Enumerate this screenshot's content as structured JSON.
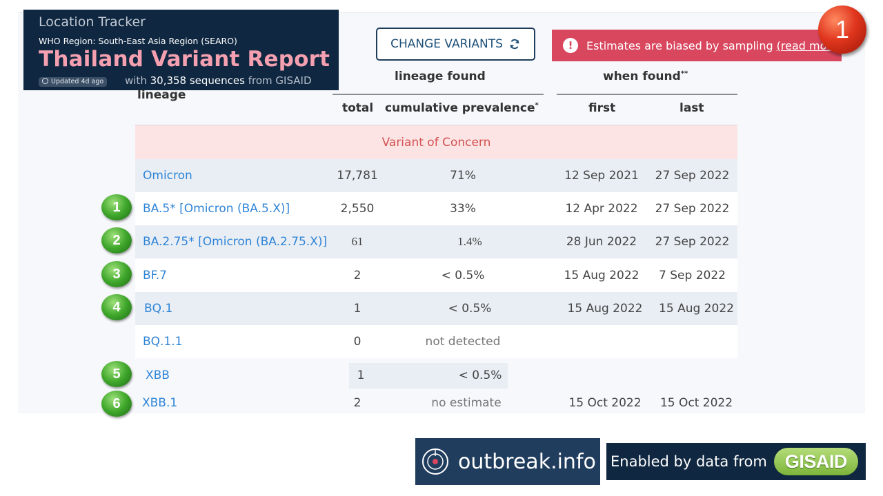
{
  "header": {
    "tracker": "Location Tracker",
    "region": "WHO Region: South-East Asia Region (SEARO)",
    "title": "Thailand Variant Report",
    "updated": "Updated 4d ago",
    "seq_prefix": "with",
    "seq_count": "30,358 sequences",
    "seq_suffix": "from GISAID"
  },
  "change_button": {
    "label": "CHANGE VARIANTS",
    "icon": "refresh-icon"
  },
  "alert": {
    "text": "Estimates are biased by sampling",
    "link": "(read more",
    "icon": "exclamation-icon",
    "color": "#d9475f"
  },
  "slide_badge": "1",
  "table": {
    "group_lineage_found": "lineage found",
    "group_when_found": "when found",
    "group_when_found_mark": "**",
    "col_lineage": "lineage",
    "col_total": "total",
    "col_prevalence": "cumulative prevalence",
    "col_prevalence_mark": "*",
    "col_first": "first",
    "col_last": "last",
    "section_label": "Variant of Concern",
    "rows": [
      {
        "badge": "",
        "lineage": "Omicron",
        "total": "17,781",
        "prevalence": "71%",
        "first": "12 Sep 2021",
        "last": "27 Sep 2022"
      },
      {
        "badge": "1",
        "lineage": "BA.5* [Omicron (BA.5.X)]",
        "total": "2,550",
        "prevalence": "33%",
        "first": "12 Apr 2022",
        "last": "27 Sep 2022"
      },
      {
        "badge": "2",
        "lineage": "BA.2.75* [Omicron (BA.2.75.X)]",
        "total": "61",
        "prevalence": "1.4%",
        "first": "28 Jun 2022",
        "last": "27 Sep 2022"
      },
      {
        "badge": "3",
        "lineage": "BF.7",
        "total": "2",
        "prevalence": "< 0.5%",
        "first": "15 Aug 2022",
        "last": "7 Sep 2022"
      },
      {
        "badge": "4",
        "lineage": "BQ.1",
        "total": "1",
        "prevalence": "< 0.5%",
        "first": "15 Aug 2022",
        "last": "15 Aug 2022"
      },
      {
        "badge": "",
        "lineage": "BQ.1.1",
        "total": "0",
        "prevalence": "not detected",
        "first": "",
        "last": ""
      },
      {
        "badge": "5",
        "lineage": "XBB",
        "total": "1",
        "prevalence": "< 0.5%",
        "first": "",
        "last": ""
      },
      {
        "badge": "6",
        "lineage": "XBB.1",
        "total": "2",
        "prevalence": "no estimate",
        "first": "15 Oct 2022",
        "last": "15 Oct 2022"
      }
    ]
  },
  "footer": {
    "outbreak": "outbreak.info",
    "enabled_by": "Enabled by data from",
    "gisaid": "GISAID"
  }
}
